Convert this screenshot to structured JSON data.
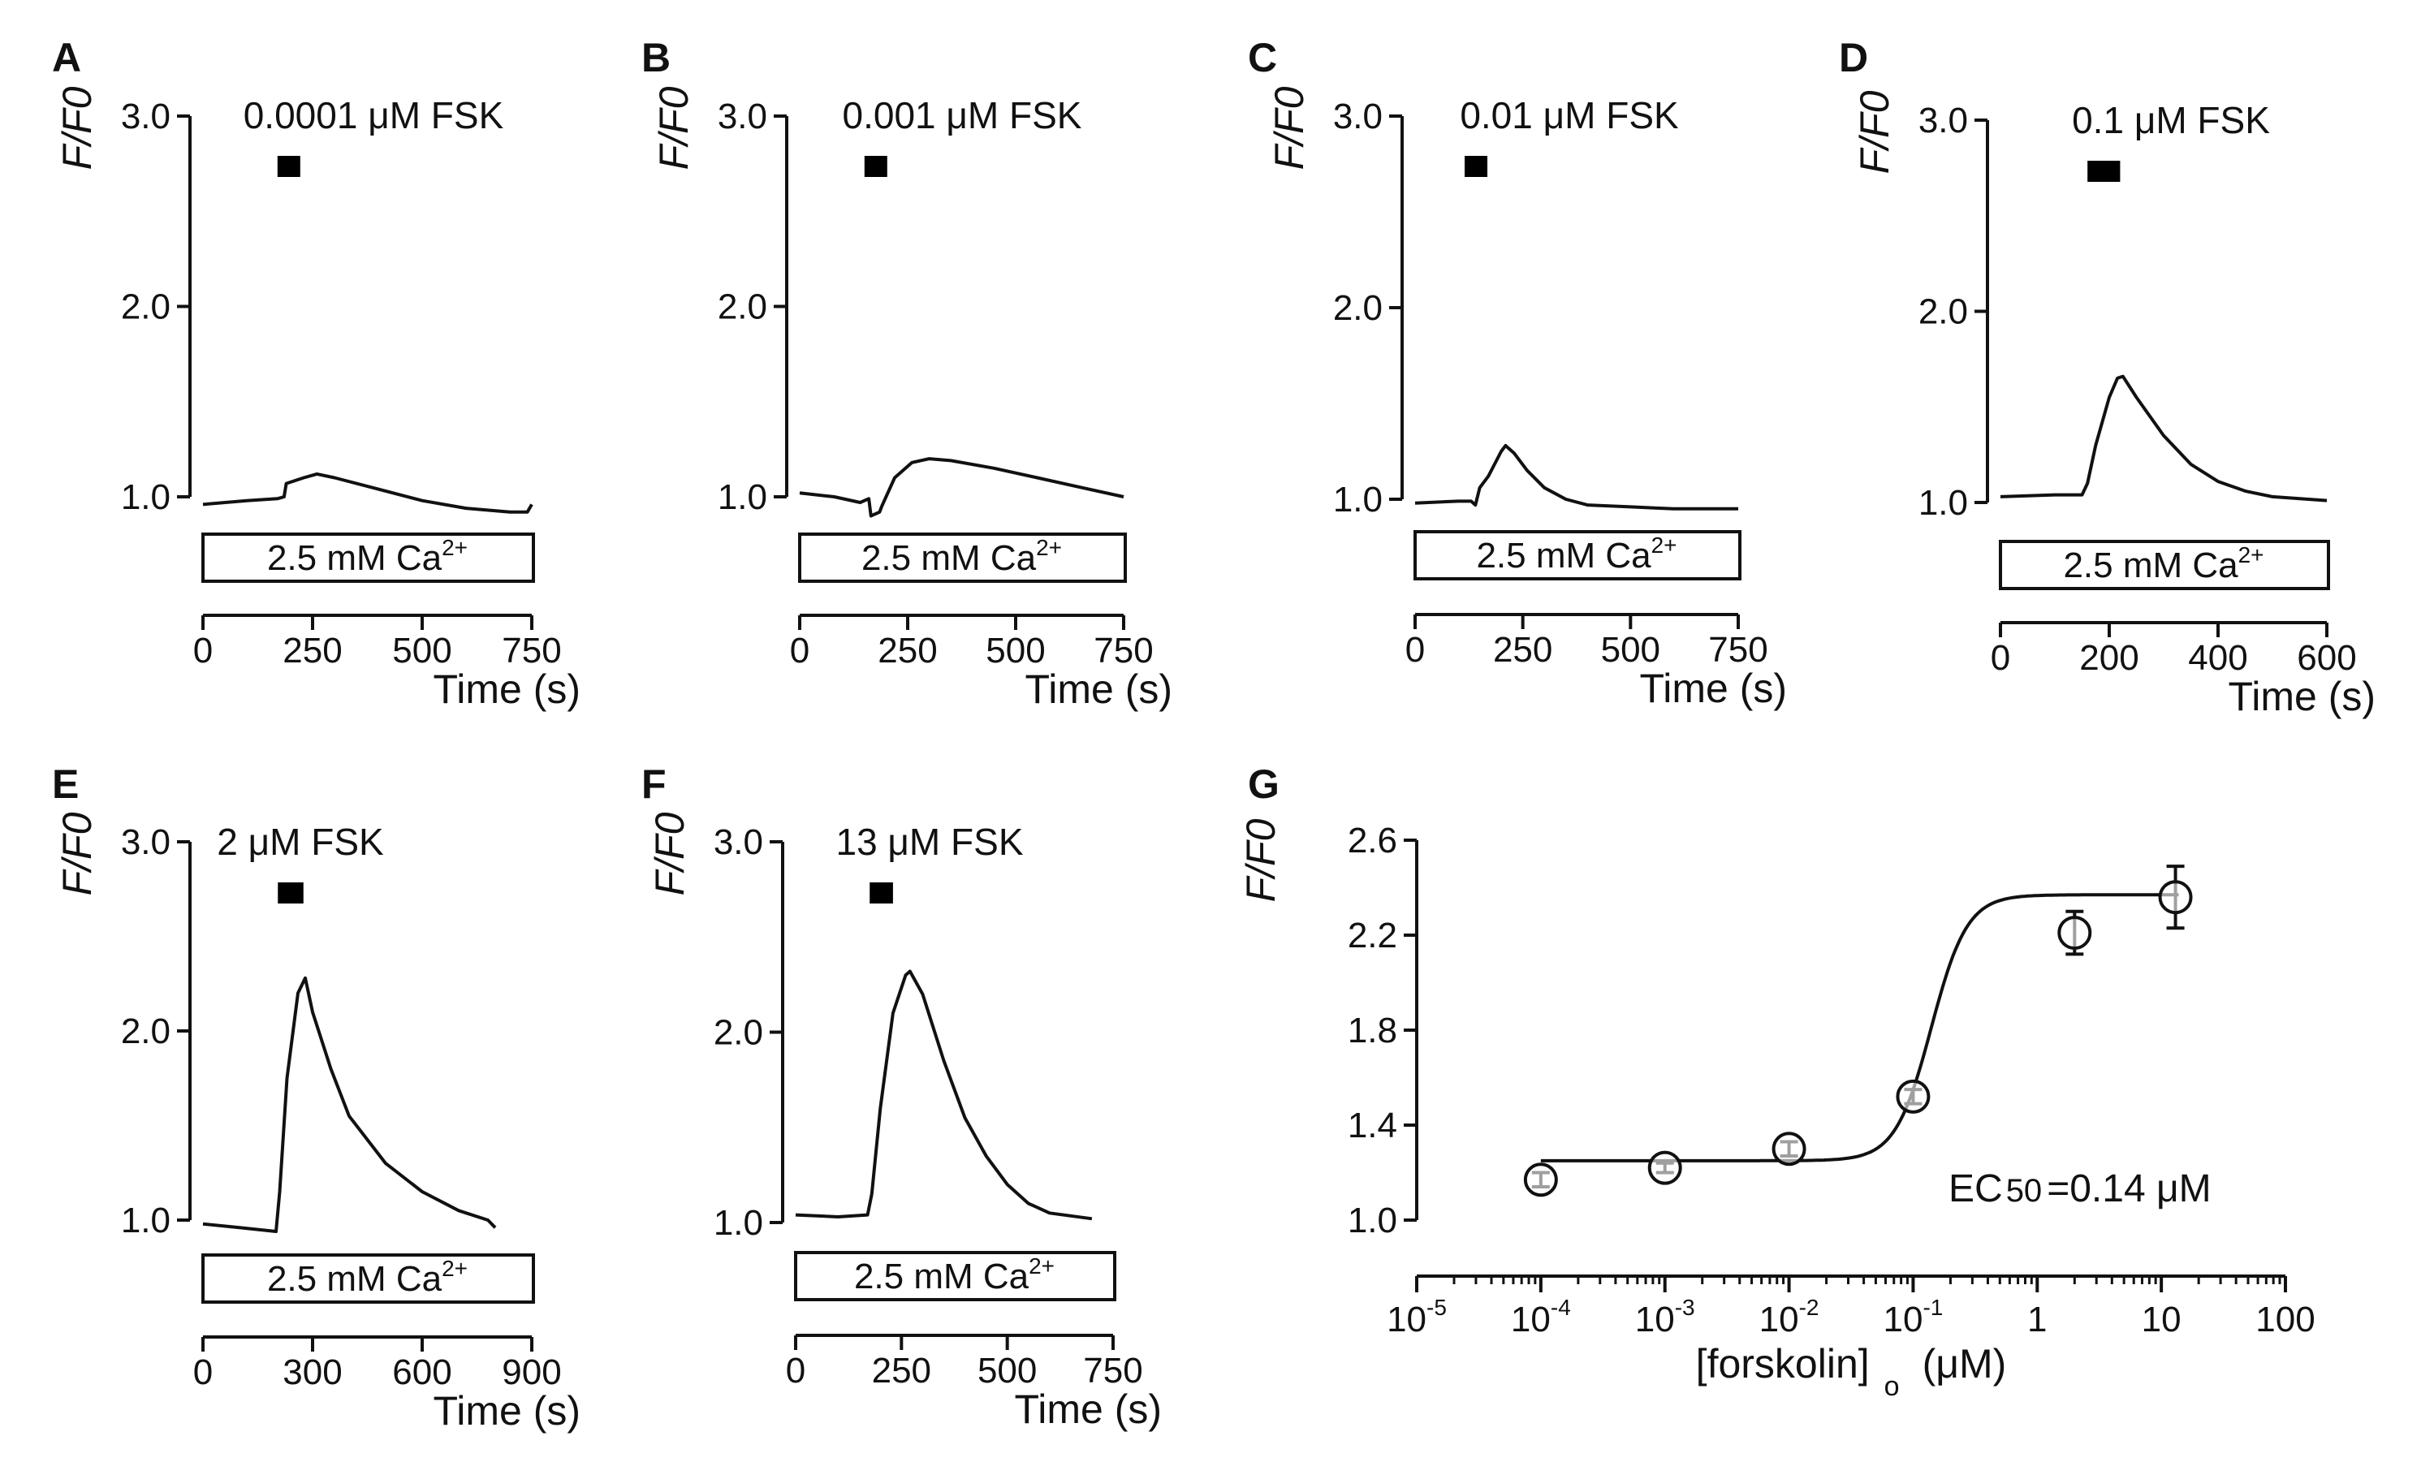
{
  "chart_data": [
    {
      "type": "line",
      "panel": "A",
      "drug_label": "0.0001 μM FSK",
      "ylabel": "F/F0",
      "xlabel": "Time (s)",
      "bath_label": "2.5 mM Ca",
      "bath_sup": "2+",
      "yticks": [
        1.0,
        2.0,
        3.0
      ],
      "ytick_labels": [
        "1.0",
        "2.0",
        "3.0"
      ],
      "xticks": [
        0,
        250,
        500,
        750
      ],
      "xtick_labels": [
        "0",
        "250",
        "500",
        "750"
      ],
      "xlim": [
        0,
        750
      ],
      "ylim": [
        1.0,
        3.0
      ],
      "drug_bar": [
        170,
        200
      ],
      "x": [
        0,
        100,
        170,
        185,
        190,
        230,
        260,
        300,
        400,
        500,
        600,
        700,
        740,
        750
      ],
      "y": [
        0.96,
        0.98,
        0.99,
        1.0,
        1.07,
        1.1,
        1.12,
        1.1,
        1.04,
        0.98,
        0.94,
        0.92,
        0.92,
        0.96
      ]
    },
    {
      "type": "line",
      "panel": "B",
      "drug_label": "0.001 μM FSK",
      "ylabel": "F/F0",
      "xlabel": "Time (s)",
      "bath_label": "2.5 mM Ca",
      "bath_sup": "2+",
      "yticks": [
        1.0,
        2.0,
        3.0
      ],
      "ytick_labels": [
        "1.0",
        "2.0",
        "3.0"
      ],
      "xticks": [
        0,
        250,
        500,
        750
      ],
      "xtick_labels": [
        "0",
        "250",
        "500",
        "750"
      ],
      "xlim": [
        0,
        750
      ],
      "ylim": [
        1.0,
        3.0
      ],
      "drug_bar": [
        150,
        195
      ],
      "x": [
        0,
        80,
        140,
        160,
        165,
        185,
        190,
        220,
        260,
        300,
        350,
        450,
        550,
        650,
        750
      ],
      "y": [
        1.02,
        1.0,
        0.97,
        0.99,
        0.9,
        0.92,
        0.95,
        1.1,
        1.18,
        1.2,
        1.19,
        1.15,
        1.1,
        1.05,
        1.0
      ]
    },
    {
      "type": "line",
      "panel": "C",
      "drug_label": "0.01 μM FSK",
      "ylabel": "F/F0",
      "xlabel": "Time (s)",
      "bath_label": "2.5 mM Ca",
      "bath_sup": "2+",
      "yticks": [
        1.0,
        2.0,
        3.0
      ],
      "ytick_labels": [
        "1.0",
        "2.0",
        "3.0"
      ],
      "xticks": [
        0,
        250,
        500,
        750
      ],
      "xtick_labels": [
        "0",
        "250",
        "500",
        "750"
      ],
      "xlim": [
        0,
        750
      ],
      "ylim": [
        1.0,
        3.0
      ],
      "drug_bar": [
        115,
        165
      ],
      "x": [
        0,
        100,
        130,
        140,
        150,
        170,
        200,
        210,
        230,
        260,
        300,
        350,
        400,
        500,
        600,
        750
      ],
      "y": [
        0.98,
        0.99,
        0.99,
        0.97,
        1.06,
        1.12,
        1.25,
        1.28,
        1.24,
        1.15,
        1.06,
        1.0,
        0.97,
        0.96,
        0.95,
        0.95
      ]
    },
    {
      "type": "line",
      "panel": "D",
      "drug_label": "0.1 μM FSK",
      "ylabel": "F/F0",
      "xlabel": "Time (s)",
      "bath_label": "2.5 mM Ca",
      "bath_sup": "2+",
      "yticks": [
        1.0,
        2.0,
        3.0
      ],
      "ytick_labels": [
        "1.0",
        "2.0",
        "3.0"
      ],
      "xticks": [
        0,
        200,
        400,
        600
      ],
      "xtick_labels": [
        "0",
        "200",
        "400",
        "600"
      ],
      "xlim": [
        0,
        600
      ],
      "ylim": [
        1.0,
        3.0
      ],
      "drug_bar": [
        160,
        220
      ],
      "x": [
        0,
        100,
        150,
        160,
        175,
        200,
        215,
        225,
        250,
        300,
        350,
        400,
        450,
        500,
        550,
        600
      ],
      "y": [
        1.03,
        1.04,
        1.04,
        1.1,
        1.3,
        1.55,
        1.65,
        1.66,
        1.55,
        1.35,
        1.2,
        1.11,
        1.06,
        1.03,
        1.02,
        1.01
      ]
    },
    {
      "type": "line",
      "panel": "E",
      "drug_label": "2 μM FSK",
      "ylabel": "F/F0",
      "xlabel": "Time (s)",
      "bath_label": "2.5 mM Ca",
      "bath_sup": "2+",
      "yticks": [
        1.0,
        2.0,
        3.0
      ],
      "ytick_labels": [
        "1.0",
        "2.0",
        "3.0"
      ],
      "xticks": [
        0,
        300,
        600,
        900
      ],
      "xtick_labels": [
        "0",
        "300",
        "600",
        "900"
      ],
      "xlim": [
        0,
        900
      ],
      "ylim": [
        1.0,
        3.0
      ],
      "drug_bar": [
        205,
        275
      ],
      "x": [
        0,
        100,
        200,
        210,
        230,
        260,
        280,
        300,
        350,
        400,
        500,
        600,
        700,
        780,
        800
      ],
      "y": [
        0.98,
        0.96,
        0.94,
        1.15,
        1.75,
        2.2,
        2.28,
        2.1,
        1.8,
        1.55,
        1.3,
        1.15,
        1.05,
        1.0,
        0.96
      ]
    },
    {
      "type": "line",
      "panel": "F",
      "drug_label": "13 μM FSK",
      "ylabel": "F/F0",
      "xlabel": "Time (s)",
      "bath_label": "2.5 mM Ca",
      "bath_sup": "2+",
      "yticks": [
        1.0,
        2.0,
        3.0
      ],
      "ytick_labels": [
        "1.0",
        "2.0",
        "3.0"
      ],
      "xticks": [
        0,
        250,
        500,
        750
      ],
      "xtick_labels": [
        "0",
        "250",
        "500",
        "750"
      ],
      "xlim": [
        0,
        750
      ],
      "ylim": [
        1.0,
        3.0
      ],
      "drug_bar": [
        175,
        230
      ],
      "x": [
        0,
        100,
        170,
        180,
        200,
        230,
        260,
        270,
        300,
        350,
        400,
        450,
        500,
        550,
        600,
        700
      ],
      "y": [
        1.04,
        1.03,
        1.04,
        1.15,
        1.6,
        2.1,
        2.3,
        2.32,
        2.2,
        1.85,
        1.55,
        1.35,
        1.2,
        1.1,
        1.05,
        1.02
      ]
    },
    {
      "type": "scatter",
      "panel": "G",
      "ylabel": "F/F0",
      "xlabel": "[forskolin]",
      "xlabel_sub": "o",
      "xlabel_unit": "(μM)",
      "annotation": "EC",
      "annotation_sub": "50",
      "annotation_value": "=0.14 μM",
      "x_scale": "log10",
      "xlim": [
        -5,
        2
      ],
      "ylim": [
        1.0,
        2.6
      ],
      "yticks": [
        1.0,
        1.4,
        1.8,
        2.2,
        2.6
      ],
      "ytick_labels": [
        "1.0",
        "1.4",
        "1.8",
        "2.2",
        "2.6"
      ],
      "xticks": [
        -5,
        -4,
        -3,
        -2,
        -1,
        0,
        1,
        2
      ],
      "xtick_labels": [
        {
          "base": "10",
          "exp": "-5"
        },
        {
          "base": "10",
          "exp": "-4"
        },
        {
          "base": "10",
          "exp": "-3"
        },
        {
          "base": "10",
          "exp": "-2"
        },
        {
          "base": "10",
          "exp": "-1"
        },
        {
          "base": "1",
          "exp": ""
        },
        {
          "base": "10",
          "exp": ""
        },
        {
          "base": "100",
          "exp": ""
        }
      ],
      "points": [
        {
          "x": 0.0001,
          "y": 1.17,
          "err": 0.03
        },
        {
          "x": 0.001,
          "y": 1.22,
          "err": 0.02
        },
        {
          "x": 0.01,
          "y": 1.3,
          "err": 0.03
        },
        {
          "x": 0.1,
          "y": 1.52,
          "err": 0.03
        },
        {
          "x": 2,
          "y": 2.21,
          "err": 0.09
        },
        {
          "x": 13,
          "y": 2.36,
          "err": 0.13
        }
      ],
      "fit": {
        "bottom": 1.25,
        "top": 2.37,
        "ec50": 0.14,
        "hill": 3.0
      }
    }
  ]
}
